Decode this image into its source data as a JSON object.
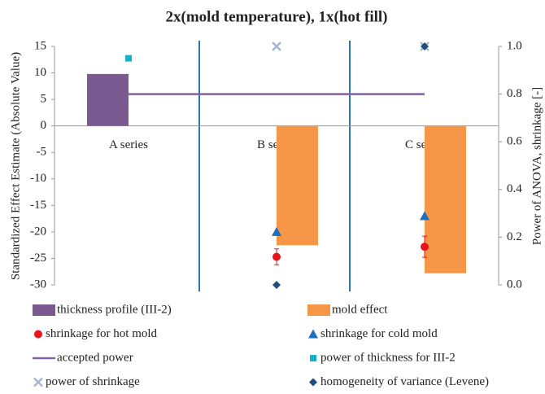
{
  "chart_data": {
    "type": "combo",
    "title": "2x(mold temperature), 1x(hot fill)",
    "y_label": "Standardized Effect Estimate (Absolute Value)",
    "y2_label": "Power of ANOVA, shrinkage [-]",
    "categories": [
      "A series",
      "B series",
      "C series"
    ],
    "ylim": [
      -30,
      15
    ],
    "yticks": [
      -30,
      -25,
      -20,
      -15,
      -10,
      -5,
      0,
      5,
      10,
      15
    ],
    "y2lim": [
      0,
      1
    ],
    "y2ticks": [
      {
        "value": 0,
        "label": "0.0"
      },
      0.2,
      0.4,
      0.6,
      0.8,
      {
        "value": 1,
        "label": "1.0"
      }
    ],
    "series": [
      {
        "name": "thickness profile (III-2)",
        "type": "bar",
        "color": "#7b5a91",
        "values": [
          9.8,
          null,
          null
        ]
      },
      {
        "name": "mold effect",
        "type": "bar",
        "color": "#f79646",
        "values": [
          null,
          -22.5,
          -27.8
        ]
      },
      {
        "name": "shrinkage for hot mold",
        "type": "scatter",
        "marker": "circle",
        "color": "#e8141c",
        "values": [
          null,
          -24.7,
          -22.8
        ],
        "errors": [
          null,
          1.5,
          2
        ]
      },
      {
        "name": "shrinkage for cold mold",
        "type": "scatter",
        "marker": "triangle",
        "color": "#1f6fc0",
        "values": [
          null,
          -20,
          -17
        ]
      },
      {
        "name": "accepted power",
        "type": "line",
        "axis": "y2",
        "color": "#8064a2",
        "values": [
          0.8,
          0.8,
          0.8
        ]
      },
      {
        "name": "power of thickness for III-2",
        "type": "scatter",
        "marker": "square",
        "axis": "y2",
        "color": "#17b0c8",
        "values": [
          0.95,
          null,
          null
        ]
      },
      {
        "name": "power of shrinkage",
        "type": "scatter",
        "marker": "x",
        "axis": "y2",
        "color": "#a6b8d8",
        "values": [
          null,
          1,
          1
        ]
      },
      {
        "name": "homogeneity of variance (Levene)",
        "type": "scatter",
        "marker": "diamond",
        "axis": "y2",
        "color": "#1f4e79",
        "values": [
          null,
          0,
          1
        ]
      }
    ]
  }
}
